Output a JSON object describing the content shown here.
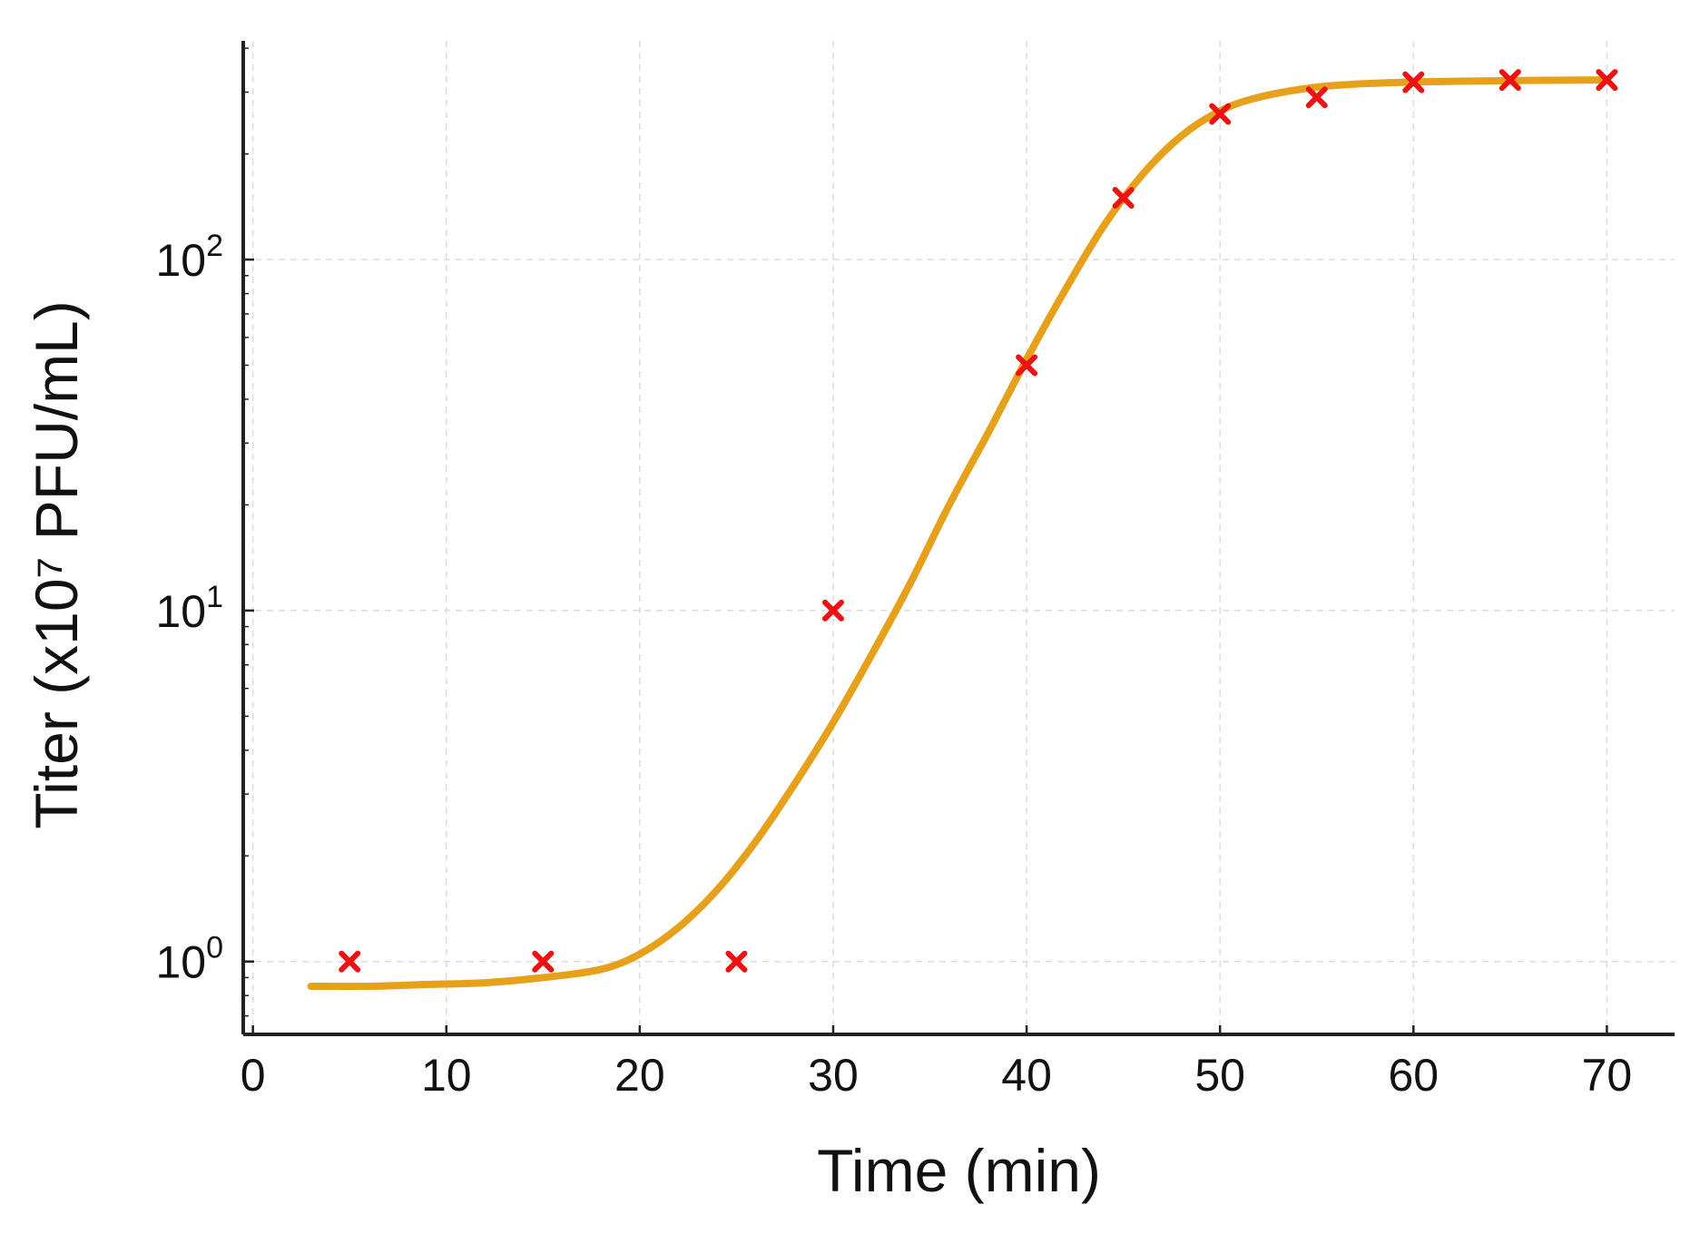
{
  "chart_data": {
    "type": "scatter",
    "title": "",
    "xlabel": "Time (min)",
    "ylabel": "Titer (x10⁷ PFU/mL)",
    "x_scale": "linear",
    "y_scale": "log",
    "xlim": [
      -0.5,
      73.5
    ],
    "ylim": [
      0.62,
      420
    ],
    "x_ticks": [
      0,
      10,
      20,
      30,
      40,
      50,
      60,
      70
    ],
    "x_tick_labels": [
      "0",
      "10",
      "20",
      "30",
      "40",
      "50",
      "60",
      "70"
    ],
    "y_ticks": [
      1,
      10,
      100
    ],
    "y_tick_labels": [
      {
        "base": "10",
        "exp": "0"
      },
      {
        "base": "10",
        "exp": "1"
      },
      {
        "base": "10",
        "exp": "2"
      }
    ],
    "grid": true,
    "series": [
      {
        "type": "scatter",
        "marker": "x",
        "color": "#ee1111",
        "x": [
          5,
          15,
          25,
          30,
          40,
          45,
          50,
          55,
          60,
          65,
          70
        ],
        "y": [
          1,
          1,
          1,
          10,
          50,
          150,
          260,
          290,
          320,
          325,
          325
        ]
      },
      {
        "type": "line",
        "color": "#e6a01a",
        "x": [
          3,
          6,
          9,
          12,
          15,
          18,
          20,
          22,
          24,
          26,
          28,
          30,
          32,
          34,
          36,
          38,
          40,
          42,
          44,
          46,
          48,
          50,
          52,
          55,
          58,
          62,
          66,
          70
        ],
        "y": [
          0.85,
          0.85,
          0.86,
          0.87,
          0.9,
          0.95,
          1.05,
          1.25,
          1.6,
          2.2,
          3.2,
          4.8,
          7.5,
          12,
          20,
          32,
          52,
          82,
          125,
          175,
          225,
          265,
          290,
          310,
          318,
          322,
          324,
          325
        ]
      }
    ]
  }
}
